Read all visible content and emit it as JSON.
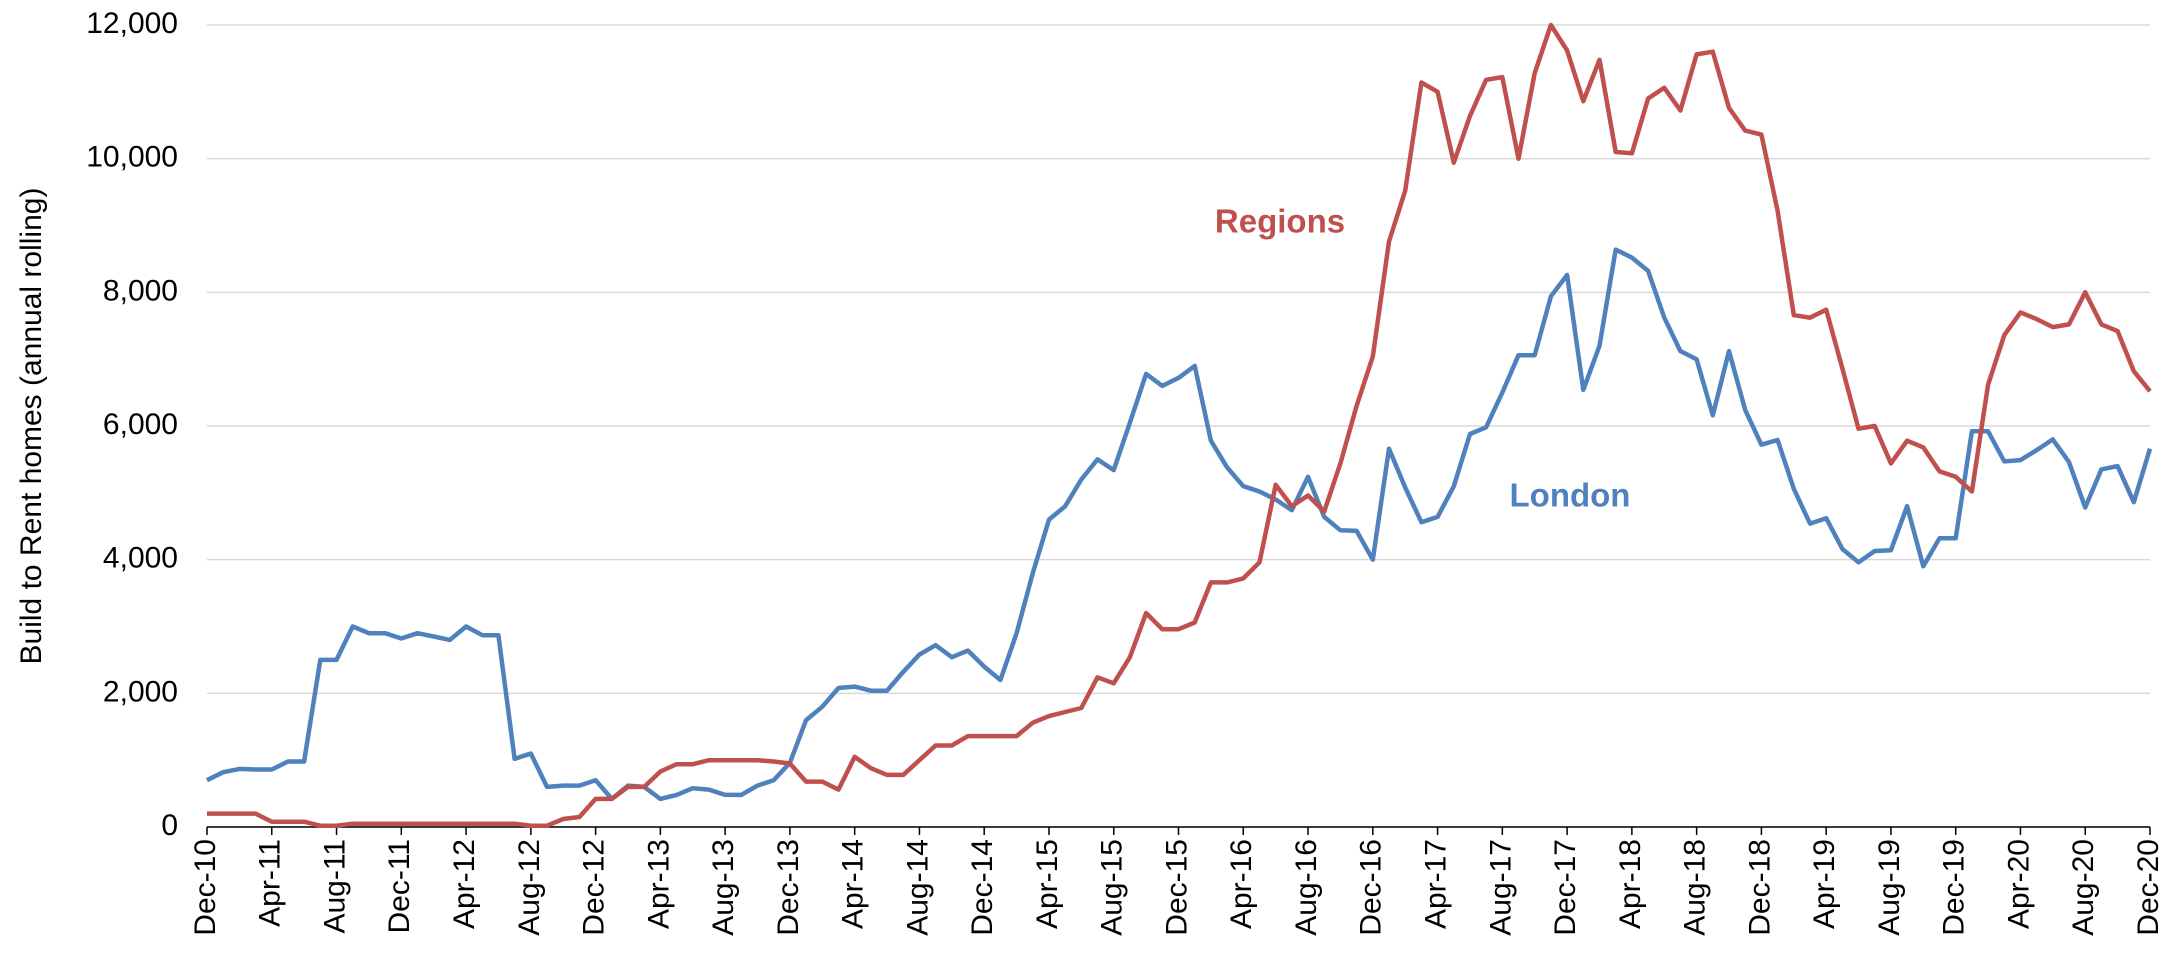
{
  "chart_data": {
    "type": "line",
    "y_label": "Build to Rent homes (annual rolling)",
    "categories": [
      "Dec-10",
      null,
      null,
      null,
      "Apr-11",
      null,
      null,
      null,
      "Aug-11",
      null,
      null,
      null,
      "Dec-11",
      null,
      null,
      null,
      "Apr-12",
      null,
      null,
      null,
      "Aug-12",
      null,
      null,
      null,
      "Dec-12",
      null,
      null,
      null,
      "Apr-13",
      null,
      null,
      null,
      "Aug-13",
      null,
      null,
      null,
      "Dec-13",
      null,
      null,
      null,
      "Apr-14",
      null,
      null,
      null,
      "Aug-14",
      null,
      null,
      null,
      "Dec-14",
      null,
      null,
      null,
      "Apr-15",
      null,
      null,
      null,
      "Aug-15",
      null,
      null,
      null,
      "Dec-15",
      null,
      null,
      null,
      "Apr-16",
      null,
      null,
      null,
      "Aug-16",
      null,
      null,
      null,
      "Dec-16",
      null,
      null,
      null,
      "Apr-17",
      null,
      null,
      null,
      "Aug-17",
      null,
      null,
      null,
      "Dec-17",
      null,
      null,
      null,
      "Apr-18",
      null,
      null,
      null,
      "Aug-18",
      null,
      null,
      null,
      "Dec-18",
      null,
      null,
      null,
      "Apr-19",
      null,
      null,
      null,
      "Aug-19",
      null,
      null,
      null,
      "Dec-19",
      null,
      null,
      null,
      "Apr-20",
      null,
      null,
      null,
      "Aug-20",
      null,
      null,
      null,
      "Dec-20"
    ],
    "series": [
      {
        "name": "London",
        "color": "#4f81bd",
        "values": [
          700,
          820,
          870,
          860,
          860,
          980,
          980,
          2500,
          2500,
          3000,
          2900,
          2900,
          2820,
          2900,
          2850,
          2800,
          3000,
          2870,
          2870,
          1020,
          1100,
          600,
          620,
          620,
          700,
          420,
          620,
          600,
          420,
          480,
          580,
          560,
          480,
          480,
          620,
          700,
          960,
          1600,
          1800,
          2080,
          2100,
          2040,
          2040,
          2320,
          2580,
          2720,
          2540,
          2640,
          2400,
          2200,
          2900,
          3800,
          4600,
          4800,
          5200,
          5500,
          5340,
          6050,
          6780,
          6600,
          6720,
          6900,
          5780,
          5380,
          5100,
          5020,
          4900,
          4740,
          5240,
          4640,
          4440,
          4430,
          4000,
          5660,
          5080,
          4560,
          4640,
          5100,
          5880,
          5980,
          6500,
          7060,
          7060,
          7940,
          8260,
          6540,
          7200,
          8640,
          8520,
          8320,
          7620,
          7120,
          7000,
          6160,
          7120,
          6240,
          5720,
          5790,
          5060,
          4540,
          4620,
          4160,
          3960,
          4130,
          4140,
          4800,
          3900,
          4320,
          4320,
          5920,
          5920,
          5470,
          5490,
          5640,
          5800,
          5460,
          4780,
          5350,
          5400,
          4860,
          5660
        ]
      },
      {
        "name": "Regions",
        "color": "#c0504d",
        "values": [
          200,
          200,
          200,
          200,
          80,
          80,
          80,
          20,
          20,
          50,
          50,
          50,
          50,
          50,
          50,
          50,
          50,
          50,
          50,
          50,
          20,
          20,
          120,
          150,
          420,
          420,
          600,
          600,
          830,
          940,
          940,
          1000,
          1000,
          1000,
          1000,
          980,
          950,
          680,
          680,
          560,
          1050,
          880,
          780,
          780,
          1000,
          1220,
          1220,
          1360,
          1360,
          1360,
          1360,
          1560,
          1660,
          1720,
          1780,
          2240,
          2150,
          2540,
          3200,
          2960,
          2960,
          3060,
          3660,
          3660,
          3720,
          3960,
          5120,
          4800,
          4960,
          4720,
          5440,
          6300,
          7040,
          8760,
          9520,
          11140,
          11000,
          9940,
          10640,
          11180,
          11220,
          10000,
          11280,
          12000,
          11620,
          10860,
          11480,
          10100,
          10080,
          10900,
          11060,
          10720,
          11560,
          11600,
          10760,
          10420,
          10360,
          9220,
          7660,
          7620,
          7740,
          6860,
          5960,
          6000,
          5440,
          5780,
          5680,
          5320,
          5240,
          5020,
          6620,
          7360,
          7700,
          7600,
          7480,
          7520,
          8000,
          7520,
          7420,
          6820,
          6520
        ]
      }
    ],
    "ylim": [
      0,
      12000
    ],
    "yticks": [
      0,
      {
        "value": 2000,
        "label": "2,000"
      },
      {
        "value": 4000,
        "label": "4,000"
      },
      {
        "value": 6000,
        "label": "6,000"
      },
      {
        "value": 8000,
        "label": "8,000"
      },
      {
        "value": 10000,
        "label": "10,000"
      },
      {
        "value": 12000,
        "label": "12,000"
      }
    ],
    "grid": true
  }
}
